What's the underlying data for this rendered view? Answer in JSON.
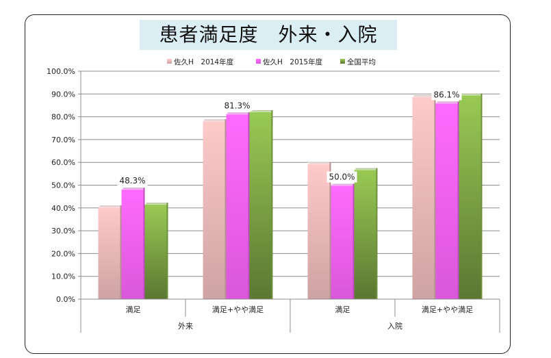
{
  "chart_data": {
    "type": "bar",
    "title": "患者満足度　外来・入院",
    "groups": [
      {
        "label": "外来",
        "categories": [
          "満足",
          "満足+やや満足"
        ]
      },
      {
        "label": "入院",
        "categories": [
          "満足",
          "満足+やや満足"
        ]
      }
    ],
    "categories": [
      "満足",
      "満足+やや満足",
      "満足",
      "満足+やや満足"
    ],
    "series": [
      {
        "name": "佐久H　2014年度",
        "color": "#f2c0c0",
        "values": [
          40.5,
          78.3,
          59.5,
          88.9
        ]
      },
      {
        "name": "佐久H　2015年度",
        "color": "#ff66ff",
        "values": [
          48.3,
          81.3,
          50.0,
          86.1
        ]
      },
      {
        "name": "全国平均",
        "color": "#92c050",
        "values": [
          41.7,
          82.3,
          56.9,
          89.6
        ]
      }
    ],
    "data_labels": [
      {
        "category_index": 0,
        "series_index": 1,
        "text": "48.3%"
      },
      {
        "category_index": 1,
        "series_index": 1,
        "text": "81.3%"
      },
      {
        "category_index": 2,
        "series_index": 1,
        "text": "50.0%"
      },
      {
        "category_index": 3,
        "series_index": 1,
        "text": "86.1%"
      }
    ],
    "y_ticks": [
      "0.0%",
      "10.0%",
      "20.0%",
      "30.0%",
      "40.0%",
      "50.0%",
      "60.0%",
      "70.0%",
      "80.0%",
      "90.0%",
      "100.0%"
    ],
    "ylim": [
      0,
      100
    ],
    "grid": true,
    "legend_position": "top"
  }
}
